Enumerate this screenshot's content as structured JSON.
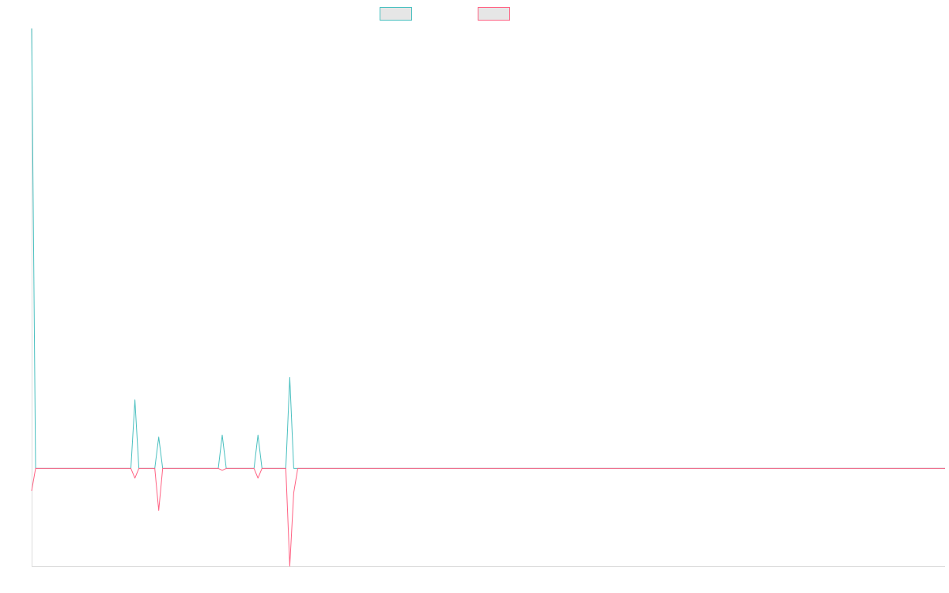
{
  "chart_data": {
    "type": "line",
    "title": "",
    "xlabel": "",
    "ylabel": "",
    "grid": false,
    "legend_position": "top-center",
    "xlim": [
      0,
      230
    ],
    "ylim": [
      -100,
      450
    ],
    "series": [
      {
        "name": "",
        "color": "#4bc0c0",
        "points": [
          [
            0,
            450
          ],
          [
            1,
            0
          ],
          [
            25,
            0
          ],
          [
            26,
            70
          ],
          [
            27,
            0
          ],
          [
            31,
            0
          ],
          [
            32,
            32
          ],
          [
            33,
            0
          ],
          [
            47,
            0
          ],
          [
            48,
            34
          ],
          [
            49,
            0
          ],
          [
            56,
            0
          ],
          [
            57,
            34
          ],
          [
            58,
            0
          ],
          [
            64,
            0
          ],
          [
            65,
            93
          ],
          [
            66,
            0
          ],
          [
            230,
            0
          ]
        ]
      },
      {
        "name": "",
        "color": "#ff6384",
        "points": [
          [
            0,
            -23
          ],
          [
            1,
            0
          ],
          [
            25,
            0
          ],
          [
            26,
            -10
          ],
          [
            27,
            0
          ],
          [
            31,
            0
          ],
          [
            32,
            -43
          ],
          [
            33,
            0
          ],
          [
            47,
            0
          ],
          [
            48,
            -2
          ],
          [
            49,
            0
          ],
          [
            56,
            0
          ],
          [
            57,
            -10
          ],
          [
            58,
            0
          ],
          [
            64,
            0
          ],
          [
            65,
            -100
          ],
          [
            66,
            -25
          ],
          [
            67,
            0
          ],
          [
            230,
            0
          ]
        ]
      }
    ]
  }
}
